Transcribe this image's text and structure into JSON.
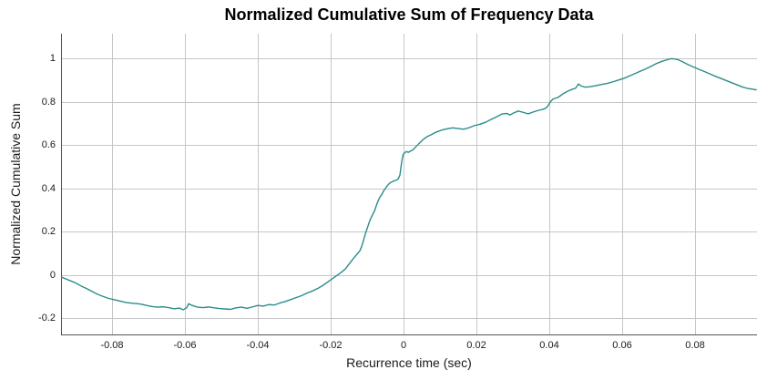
{
  "colors": {
    "line": "#2b8c8b",
    "grid": "#c6c6c6",
    "spine": "#555555",
    "tick_label": "#1a1a1a",
    "title": "#000000",
    "background": "#ffffff"
  },
  "chart_data": {
    "type": "line",
    "title": "Normalized Cumulative Sum of Frequency Data",
    "xlabel": "Recurrence time (sec)",
    "ylabel": "Normalized Cumulative Sum",
    "xlim": [
      -0.094,
      0.097
    ],
    "ylim": [
      -0.278,
      1.115
    ],
    "grid": true,
    "legend": null,
    "line_color": "#2b8c8b",
    "x_ticks": {
      "values": [
        -0.08,
        -0.06,
        -0.04,
        -0.02,
        0,
        0.02,
        0.04,
        0.06,
        0.08
      ],
      "labels": [
        "-0.08",
        "-0.06",
        "-0.04",
        "-0.02",
        "0",
        "0.02",
        "0.04",
        "0.06",
        "0.08"
      ]
    },
    "y_ticks": {
      "values": [
        1,
        0.8,
        0.6,
        0.4,
        0.2,
        0,
        -0.2
      ],
      "labels": [
        "1",
        "0.8",
        "0.6",
        "0.4",
        "0.2",
        "0",
        "-0.2"
      ]
    },
    "points": [
      [
        -0.094,
        -0.008
      ],
      [
        -0.092,
        -0.022
      ],
      [
        -0.09,
        -0.036
      ],
      [
        -0.0885,
        -0.05
      ],
      [
        -0.087,
        -0.062
      ],
      [
        -0.0855,
        -0.075
      ],
      [
        -0.084,
        -0.088
      ],
      [
        -0.0825,
        -0.098
      ],
      [
        -0.081,
        -0.107
      ],
      [
        -0.0795,
        -0.113
      ],
      [
        -0.078,
        -0.119
      ],
      [
        -0.0765,
        -0.125
      ],
      [
        -0.075,
        -0.129
      ],
      [
        -0.0735,
        -0.131
      ],
      [
        -0.072,
        -0.134
      ],
      [
        -0.0705,
        -0.14
      ],
      [
        -0.069,
        -0.145
      ],
      [
        -0.0675,
        -0.148
      ],
      [
        -0.066,
        -0.146
      ],
      [
        -0.0645,
        -0.15
      ],
      [
        -0.063,
        -0.155
      ],
      [
        -0.0615,
        -0.152
      ],
      [
        -0.0605,
        -0.16
      ],
      [
        -0.0595,
        -0.15
      ],
      [
        -0.059,
        -0.132
      ],
      [
        -0.058,
        -0.14
      ],
      [
        -0.0565,
        -0.148
      ],
      [
        -0.055,
        -0.15
      ],
      [
        -0.0535,
        -0.147
      ],
      [
        -0.052,
        -0.151
      ],
      [
        -0.0505,
        -0.154
      ],
      [
        -0.049,
        -0.156
      ],
      [
        -0.0475,
        -0.158
      ],
      [
        -0.046,
        -0.151
      ],
      [
        -0.0445,
        -0.148
      ],
      [
        -0.043,
        -0.153
      ],
      [
        -0.0415,
        -0.147
      ],
      [
        -0.04,
        -0.14
      ],
      [
        -0.0385,
        -0.143
      ],
      [
        -0.037,
        -0.136
      ],
      [
        -0.0355,
        -0.138
      ],
      [
        -0.034,
        -0.129
      ],
      [
        -0.0325,
        -0.122
      ],
      [
        -0.031,
        -0.113
      ],
      [
        -0.0295,
        -0.104
      ],
      [
        -0.028,
        -0.095
      ],
      [
        -0.0265,
        -0.083
      ],
      [
        -0.025,
        -0.073
      ],
      [
        -0.0235,
        -0.061
      ],
      [
        -0.022,
        -0.046
      ],
      [
        -0.0205,
        -0.028
      ],
      [
        -0.019,
        -0.01
      ],
      [
        -0.0175,
        0.008
      ],
      [
        -0.016,
        0.028
      ],
      [
        -0.015,
        0.05
      ],
      [
        -0.014,
        0.072
      ],
      [
        -0.013,
        0.092
      ],
      [
        -0.012,
        0.112
      ],
      [
        -0.0115,
        0.132
      ],
      [
        -0.011,
        0.16
      ],
      [
        -0.0105,
        0.19
      ],
      [
        -0.01,
        0.215
      ],
      [
        -0.0095,
        0.24
      ],
      [
        -0.009,
        0.262
      ],
      [
        -0.0085,
        0.28
      ],
      [
        -0.008,
        0.295
      ],
      [
        -0.0075,
        0.32
      ],
      [
        -0.007,
        0.342
      ],
      [
        -0.0065,
        0.36
      ],
      [
        -0.006,
        0.372
      ],
      [
        -0.0055,
        0.388
      ],
      [
        -0.005,
        0.4
      ],
      [
        -0.0045,
        0.412
      ],
      [
        -0.004,
        0.422
      ],
      [
        -0.0035,
        0.428
      ],
      [
        -0.003,
        0.432
      ],
      [
        -0.0025,
        0.436
      ],
      [
        -0.002,
        0.439
      ],
      [
        -0.0015,
        0.443
      ],
      [
        -0.001,
        0.462
      ],
      [
        -0.0007,
        0.5
      ],
      [
        -0.0004,
        0.535
      ],
      [
        -0.0001,
        0.557
      ],
      [
        0.0003,
        0.565
      ],
      [
        0.0008,
        0.571
      ],
      [
        0.0013,
        0.567
      ],
      [
        0.0018,
        0.572
      ],
      [
        0.0025,
        0.578
      ],
      [
        0.0035,
        0.595
      ],
      [
        0.0045,
        0.612
      ],
      [
        0.0055,
        0.628
      ],
      [
        0.0065,
        0.64
      ],
      [
        0.0075,
        0.648
      ],
      [
        0.0085,
        0.657
      ],
      [
        0.0095,
        0.664
      ],
      [
        0.0105,
        0.67
      ],
      [
        0.012,
        0.676
      ],
      [
        0.0135,
        0.68
      ],
      [
        0.015,
        0.677
      ],
      [
        0.0165,
        0.674
      ],
      [
        0.018,
        0.681
      ],
      [
        0.0195,
        0.691
      ],
      [
        0.021,
        0.697
      ],
      [
        0.0225,
        0.706
      ],
      [
        0.024,
        0.719
      ],
      [
        0.0255,
        0.731
      ],
      [
        0.027,
        0.744
      ],
      [
        0.0283,
        0.747
      ],
      [
        0.0292,
        0.74
      ],
      [
        0.0302,
        0.749
      ],
      [
        0.0315,
        0.758
      ],
      [
        0.033,
        0.751
      ],
      [
        0.0342,
        0.745
      ],
      [
        0.0355,
        0.753
      ],
      [
        0.037,
        0.761
      ],
      [
        0.0383,
        0.766
      ],
      [
        0.0392,
        0.773
      ],
      [
        0.0398,
        0.786
      ],
      [
        0.0403,
        0.801
      ],
      [
        0.041,
        0.813
      ],
      [
        0.0425,
        0.822
      ],
      [
        0.044,
        0.84
      ],
      [
        0.0452,
        0.851
      ],
      [
        0.0462,
        0.858
      ],
      [
        0.0472,
        0.863
      ],
      [
        0.048,
        0.883
      ],
      [
        0.0488,
        0.873
      ],
      [
        0.05,
        0.868
      ],
      [
        0.0515,
        0.871
      ],
      [
        0.053,
        0.876
      ],
      [
        0.0545,
        0.881
      ],
      [
        0.056,
        0.886
      ],
      [
        0.0575,
        0.893
      ],
      [
        0.059,
        0.901
      ],
      [
        0.0605,
        0.909
      ],
      [
        0.062,
        0.92
      ],
      [
        0.0635,
        0.931
      ],
      [
        0.065,
        0.942
      ],
      [
        0.0665,
        0.953
      ],
      [
        0.068,
        0.965
      ],
      [
        0.0695,
        0.978
      ],
      [
        0.071,
        0.988
      ],
      [
        0.0722,
        0.994
      ],
      [
        0.0735,
        1.0
      ],
      [
        0.075,
        0.997
      ],
      [
        0.0765,
        0.986
      ],
      [
        0.078,
        0.973
      ],
      [
        0.0795,
        0.962
      ],
      [
        0.081,
        0.951
      ],
      [
        0.0825,
        0.941
      ],
      [
        0.084,
        0.93
      ],
      [
        0.0855,
        0.919
      ],
      [
        0.087,
        0.909
      ],
      [
        0.0885,
        0.899
      ],
      [
        0.09,
        0.889
      ],
      [
        0.0915,
        0.879
      ],
      [
        0.093,
        0.869
      ],
      [
        0.0945,
        0.862
      ],
      [
        0.096,
        0.858
      ],
      [
        0.0968,
        0.856
      ]
    ]
  }
}
